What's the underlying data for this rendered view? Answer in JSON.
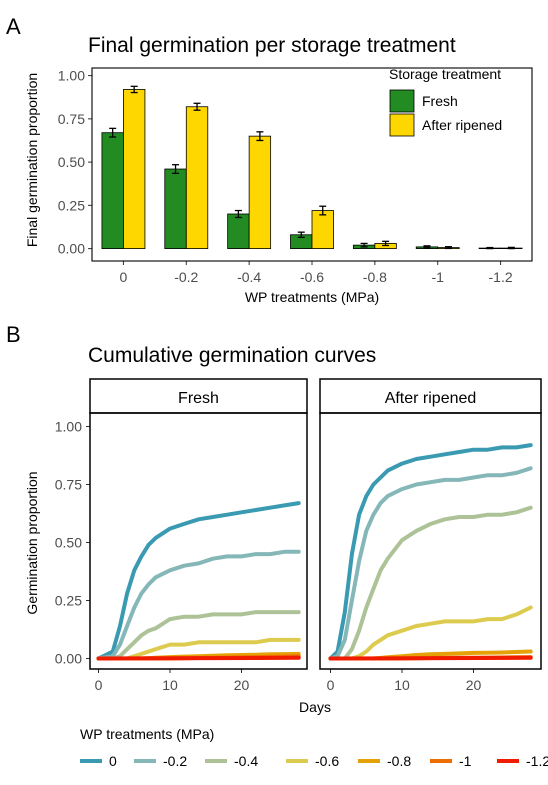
{
  "panel_a": {
    "tag": "A",
    "chart_data": {
      "type": "bar",
      "title": "Final germination per storage treatment",
      "xlabel": "WP treatments (MPa)",
      "ylabel": "Final germination proportion",
      "categories": [
        "0",
        "-0.2",
        "-0.4",
        "-0.6",
        "-0.8",
        "-1",
        "-1.2"
      ],
      "ylim": [
        0,
        1.05
      ],
      "yticks": [
        "0.00",
        "0.25",
        "0.50",
        "0.75",
        "1.00"
      ],
      "legend_title": "Storage treatment",
      "legend_position": "top-right",
      "series": [
        {
          "name": "Fresh",
          "color": "#228B22",
          "values": [
            0.67,
            0.46,
            0.2,
            0.08,
            0.02,
            0.01,
            0.003
          ],
          "errors": [
            0.025,
            0.025,
            0.02,
            0.015,
            0.01,
            0.006,
            0.003
          ]
        },
        {
          "name": "After ripened",
          "color": "#FFD700",
          "values": [
            0.92,
            0.82,
            0.65,
            0.22,
            0.03,
            0.006,
            0.003
          ],
          "errors": [
            0.018,
            0.02,
            0.025,
            0.025,
            0.012,
            0.005,
            0.004
          ]
        }
      ]
    }
  },
  "panel_b": {
    "tag": "B",
    "chart_data": {
      "type": "line",
      "title": "Cumulative germination curves",
      "xlabel": "Days",
      "ylabel": "Germination proportion",
      "xlim": [
        0,
        28.5
      ],
      "ylim": [
        0,
        1.0
      ],
      "xticks": [
        "0",
        "10",
        "20"
      ],
      "yticks": [
        "0.00",
        "0.25",
        "0.50",
        "0.75",
        "1.00"
      ],
      "facets": [
        "Fresh",
        "After ripened"
      ],
      "legend_title": "WP treatments (MPa)",
      "legend_position": "bottom",
      "treatments": [
        {
          "name": "0",
          "color": "#3A9AB2"
        },
        {
          "name": "-0.2",
          "color": "#85B7B9"
        },
        {
          "name": "-0.4",
          "color": "#ADC397"
        },
        {
          "name": "-0.6",
          "color": "#DCCB4E"
        },
        {
          "name": "-0.8",
          "color": "#E5A208"
        },
        {
          "name": "-1",
          "color": "#ED6E04"
        },
        {
          "name": "-1.2",
          "color": "#F11B00"
        }
      ],
      "curves": {
        "Fresh": [
          {
            "x": [
              0,
              2,
              3,
              4,
              5,
              6,
              7,
              8,
              10,
              12,
              14,
              16,
              18,
              20,
              22,
              24,
              26,
              28
            ],
            "y": [
              0,
              0.03,
              0.14,
              0.28,
              0.38,
              0.44,
              0.49,
              0.52,
              0.56,
              0.58,
              0.6,
              0.61,
              0.62,
              0.63,
              0.64,
              0.65,
              0.66,
              0.67
            ]
          },
          {
            "x": [
              0,
              2,
              3,
              4,
              5,
              6,
              7,
              8,
              10,
              12,
              14,
              16,
              18,
              20,
              22,
              24,
              26,
              28
            ],
            "y": [
              0,
              0.01,
              0.06,
              0.14,
              0.22,
              0.28,
              0.32,
              0.35,
              0.38,
              0.4,
              0.41,
              0.43,
              0.44,
              0.44,
              0.45,
              0.45,
              0.46,
              0.46
            ]
          },
          {
            "x": [
              0,
              2,
              3,
              4,
              5,
              6,
              7,
              8,
              10,
              12,
              14,
              16,
              18,
              20,
              22,
              24,
              26,
              28
            ],
            "y": [
              0,
              0.0,
              0.01,
              0.04,
              0.07,
              0.1,
              0.12,
              0.13,
              0.17,
              0.18,
              0.18,
              0.19,
              0.19,
              0.19,
              0.2,
              0.2,
              0.2,
              0.2
            ]
          },
          {
            "x": [
              0,
              4,
              5,
              6,
              7,
              8,
              10,
              12,
              14,
              16,
              18,
              20,
              22,
              24,
              26,
              28
            ],
            "y": [
              0,
              0.0,
              0.01,
              0.02,
              0.03,
              0.04,
              0.06,
              0.06,
              0.07,
              0.07,
              0.07,
              0.07,
              0.07,
              0.08,
              0.08,
              0.08
            ]
          },
          {
            "x": [
              0,
              6,
              8,
              10,
              12,
              14,
              16,
              18,
              20,
              22,
              24,
              26,
              28
            ],
            "y": [
              0,
              0.0,
              0.003,
              0.006,
              0.008,
              0.01,
              0.012,
              0.014,
              0.015,
              0.016,
              0.018,
              0.019,
              0.02
            ]
          },
          {
            "x": [
              0,
              10,
              14,
              18,
              22,
              26,
              28
            ],
            "y": [
              0,
              0.0,
              0.002,
              0.004,
              0.006,
              0.008,
              0.01
            ]
          },
          {
            "x": [
              0,
              28
            ],
            "y": [
              0,
              0.003
            ]
          }
        ],
        "After ripened": [
          {
            "x": [
              0,
              1,
              2,
              3,
              4,
              5,
              6,
              7,
              8,
              10,
              12,
              14,
              16,
              18,
              20,
              22,
              24,
              26,
              28
            ],
            "y": [
              0,
              0.03,
              0.2,
              0.45,
              0.62,
              0.7,
              0.75,
              0.78,
              0.81,
              0.84,
              0.86,
              0.87,
              0.88,
              0.89,
              0.9,
              0.9,
              0.91,
              0.91,
              0.92
            ]
          },
          {
            "x": [
              0,
              1,
              2,
              3,
              4,
              5,
              6,
              7,
              8,
              10,
              12,
              14,
              16,
              18,
              20,
              22,
              24,
              26,
              28
            ],
            "y": [
              0,
              0.01,
              0.08,
              0.25,
              0.42,
              0.55,
              0.62,
              0.67,
              0.7,
              0.73,
              0.75,
              0.76,
              0.77,
              0.77,
              0.78,
              0.79,
              0.79,
              0.8,
              0.82
            ]
          },
          {
            "x": [
              0,
              2,
              3,
              4,
              5,
              6,
              7,
              8,
              10,
              12,
              14,
              16,
              18,
              20,
              22,
              24,
              26,
              28
            ],
            "y": [
              0,
              0.0,
              0.04,
              0.12,
              0.22,
              0.3,
              0.38,
              0.43,
              0.51,
              0.55,
              0.58,
              0.6,
              0.61,
              0.61,
              0.62,
              0.62,
              0.63,
              0.65
            ]
          },
          {
            "x": [
              0,
              3,
              4,
              5,
              6,
              7,
              8,
              10,
              12,
              14,
              16,
              18,
              20,
              22,
              24,
              26,
              28
            ],
            "y": [
              0,
              0.0,
              0.01,
              0.03,
              0.06,
              0.08,
              0.1,
              0.12,
              0.14,
              0.15,
              0.16,
              0.16,
              0.16,
              0.17,
              0.17,
              0.19,
              0.22
            ]
          },
          {
            "x": [
              0,
              6,
              8,
              10,
              12,
              14,
              16,
              18,
              20,
              22,
              24,
              26,
              28
            ],
            "y": [
              0,
              0.0,
              0.005,
              0.01,
              0.015,
              0.018,
              0.02,
              0.022,
              0.024,
              0.025,
              0.026,
              0.028,
              0.03
            ]
          },
          {
            "x": [
              0,
              10,
              14,
              18,
              22,
              26,
              28
            ],
            "y": [
              0,
              0.0,
              0.002,
              0.003,
              0.004,
              0.005,
              0.006
            ]
          },
          {
            "x": [
              0,
              28
            ],
            "y": [
              0,
              0.003
            ]
          }
        ]
      }
    }
  }
}
